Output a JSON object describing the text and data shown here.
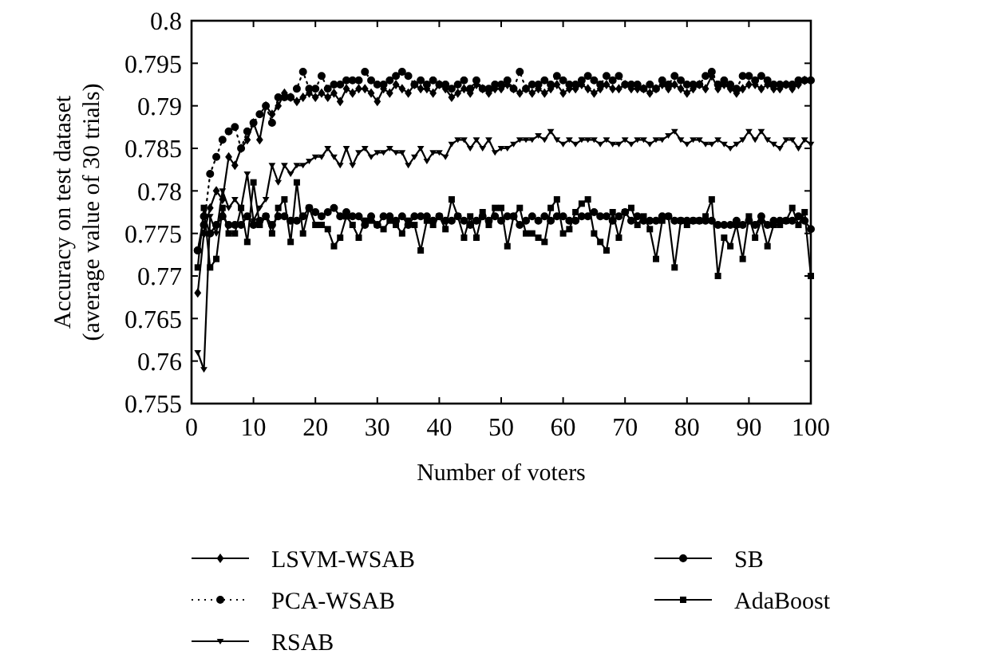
{
  "chart_data": {
    "type": "line",
    "xlabel": "Number of voters",
    "ylabel": "Accuracy on test dataset\n(average value of 30 trials)",
    "xlim": [
      0,
      100
    ],
    "xticks": [
      0,
      10,
      20,
      30,
      40,
      50,
      60,
      70,
      80,
      90,
      100
    ],
    "ylim": [
      0.755,
      0.8
    ],
    "yticks": [
      0.755,
      0.76,
      0.765,
      0.77,
      0.775,
      0.78,
      0.785,
      0.79,
      0.795,
      0.8
    ],
    "grid": false,
    "legend": "bottom",
    "x": [
      1,
      2,
      3,
      4,
      5,
      6,
      7,
      8,
      9,
      10,
      11,
      12,
      13,
      14,
      15,
      16,
      17,
      18,
      19,
      20,
      21,
      22,
      23,
      24,
      25,
      26,
      27,
      28,
      29,
      30,
      31,
      32,
      33,
      34,
      35,
      36,
      37,
      38,
      39,
      40,
      41,
      42,
      43,
      44,
      45,
      46,
      47,
      48,
      49,
      50,
      51,
      52,
      53,
      54,
      55,
      56,
      57,
      58,
      59,
      60,
      61,
      62,
      63,
      64,
      65,
      66,
      67,
      68,
      69,
      70,
      71,
      72,
      73,
      74,
      75,
      76,
      77,
      78,
      79,
      80,
      81,
      82,
      83,
      84,
      85,
      86,
      87,
      88,
      89,
      90,
      91,
      92,
      93,
      94,
      95,
      96,
      97,
      98,
      99,
      100
    ],
    "series": [
      {
        "name": "LSVM-WSAB",
        "color": "#000000",
        "marker": "diamond",
        "line_style": "solid",
        "values": [
          0.768,
          0.775,
          0.778,
          0.78,
          0.779,
          0.784,
          0.783,
          0.785,
          0.786,
          0.788,
          0.786,
          0.79,
          0.789,
          0.79,
          0.7915,
          0.791,
          0.7905,
          0.791,
          0.7915,
          0.791,
          0.7915,
          0.791,
          0.7915,
          0.7905,
          0.792,
          0.7915,
          0.792,
          0.792,
          0.7915,
          0.7905,
          0.792,
          0.7915,
          0.7925,
          0.792,
          0.7915,
          0.7925,
          0.792,
          0.792,
          0.7915,
          0.7925,
          0.792,
          0.791,
          0.7915,
          0.792,
          0.7915,
          0.7925,
          0.792,
          0.7915,
          0.792,
          0.792,
          0.7925,
          0.792,
          0.7915,
          0.792,
          0.7915,
          0.792,
          0.7915,
          0.792,
          0.7925,
          0.7915,
          0.792,
          0.792,
          0.7925,
          0.792,
          0.7915,
          0.792,
          0.7925,
          0.792,
          0.792,
          0.7925,
          0.792,
          0.792,
          0.792,
          0.7915,
          0.792,
          0.7925,
          0.792,
          0.7925,
          0.792,
          0.7915,
          0.792,
          0.7925,
          0.792,
          0.7935,
          0.792,
          0.7925,
          0.792,
          0.7915,
          0.792,
          0.7925,
          0.7925,
          0.792,
          0.7925,
          0.792,
          0.792,
          0.7925,
          0.792,
          0.7925,
          0.793,
          0.793
        ]
      },
      {
        "name": "PCA-WSAB",
        "color": "#000000",
        "marker": "circle",
        "line_style": "dotted",
        "values": [
          0.773,
          0.776,
          0.782,
          0.784,
          0.786,
          0.787,
          0.7875,
          0.785,
          0.787,
          0.788,
          0.789,
          0.79,
          0.788,
          0.791,
          0.791,
          0.791,
          0.792,
          0.794,
          0.792,
          0.792,
          0.7935,
          0.792,
          0.7925,
          0.7925,
          0.793,
          0.793,
          0.793,
          0.794,
          0.793,
          0.7925,
          0.7925,
          0.793,
          0.7935,
          0.794,
          0.7935,
          0.7925,
          0.793,
          0.7925,
          0.793,
          0.7925,
          0.7925,
          0.792,
          0.7925,
          0.793,
          0.792,
          0.793,
          0.792,
          0.792,
          0.7925,
          0.7925,
          0.793,
          0.792,
          0.794,
          0.792,
          0.7925,
          0.7925,
          0.793,
          0.7925,
          0.7935,
          0.793,
          0.7925,
          0.7925,
          0.793,
          0.7935,
          0.793,
          0.7925,
          0.7935,
          0.793,
          0.7935,
          0.7925,
          0.7925,
          0.7925,
          0.792,
          0.7925,
          0.792,
          0.793,
          0.7925,
          0.7935,
          0.793,
          0.7925,
          0.7925,
          0.7925,
          0.7935,
          0.794,
          0.7925,
          0.793,
          0.7925,
          0.792,
          0.7935,
          0.7935,
          0.793,
          0.7935,
          0.793,
          0.7925,
          0.7925,
          0.7925,
          0.7925,
          0.793,
          0.793,
          0.793
        ]
      },
      {
        "name": "RSAB",
        "color": "#000000",
        "marker": "triangle",
        "line_style": "solid",
        "values": [
          0.761,
          0.759,
          0.777,
          0.775,
          0.78,
          0.778,
          0.779,
          0.778,
          0.782,
          0.7765,
          0.778,
          0.779,
          0.783,
          0.781,
          0.783,
          0.782,
          0.783,
          0.783,
          0.7835,
          0.784,
          0.784,
          0.785,
          0.784,
          0.783,
          0.785,
          0.783,
          0.7845,
          0.785,
          0.784,
          0.7845,
          0.7845,
          0.785,
          0.7845,
          0.7845,
          0.783,
          0.784,
          0.785,
          0.7835,
          0.7845,
          0.7845,
          0.784,
          0.7855,
          0.786,
          0.786,
          0.785,
          0.786,
          0.785,
          0.786,
          0.7845,
          0.785,
          0.785,
          0.7855,
          0.786,
          0.786,
          0.786,
          0.7865,
          0.786,
          0.787,
          0.786,
          0.7855,
          0.786,
          0.7855,
          0.786,
          0.786,
          0.786,
          0.7855,
          0.786,
          0.7855,
          0.7855,
          0.786,
          0.7855,
          0.786,
          0.786,
          0.7855,
          0.786,
          0.786,
          0.7865,
          0.787,
          0.786,
          0.7855,
          0.786,
          0.786,
          0.7855,
          0.7855,
          0.786,
          0.7855,
          0.785,
          0.7855,
          0.786,
          0.787,
          0.786,
          0.787,
          0.786,
          0.7855,
          0.785,
          0.786,
          0.786,
          0.785,
          0.786,
          0.7855
        ]
      },
      {
        "name": "SB",
        "color": "#000000",
        "marker": "circle",
        "line_style": "solid",
        "values": [
          0.773,
          0.777,
          0.775,
          0.776,
          0.777,
          0.776,
          0.776,
          0.776,
          0.777,
          0.776,
          0.7765,
          0.777,
          0.776,
          0.777,
          0.777,
          0.7765,
          0.7765,
          0.777,
          0.778,
          0.7775,
          0.777,
          0.7775,
          0.778,
          0.777,
          0.7775,
          0.777,
          0.777,
          0.776,
          0.777,
          0.776,
          0.777,
          0.777,
          0.7765,
          0.777,
          0.776,
          0.777,
          0.777,
          0.777,
          0.7765,
          0.777,
          0.7765,
          0.7765,
          0.777,
          0.7765,
          0.776,
          0.7765,
          0.777,
          0.7765,
          0.777,
          0.7765,
          0.777,
          0.777,
          0.776,
          0.7765,
          0.777,
          0.7765,
          0.777,
          0.7765,
          0.777,
          0.777,
          0.7765,
          0.7765,
          0.777,
          0.777,
          0.7775,
          0.777,
          0.777,
          0.7765,
          0.777,
          0.7775,
          0.7765,
          0.777,
          0.7765,
          0.7765,
          0.7765,
          0.777,
          0.777,
          0.7765,
          0.7765,
          0.7765,
          0.7765,
          0.7765,
          0.7765,
          0.7765,
          0.776,
          0.776,
          0.776,
          0.7765,
          0.776,
          0.7765,
          0.776,
          0.777,
          0.776,
          0.7765,
          0.7765,
          0.7765,
          0.7765,
          0.777,
          0.7765,
          0.7755
        ]
      },
      {
        "name": "AdaBoost",
        "color": "#000000",
        "marker": "square",
        "line_style": "solid",
        "values": [
          0.771,
          0.778,
          0.771,
          0.772,
          0.778,
          0.775,
          0.775,
          0.778,
          0.774,
          0.781,
          0.776,
          0.777,
          0.775,
          0.778,
          0.779,
          0.774,
          0.781,
          0.775,
          0.778,
          0.776,
          0.776,
          0.7755,
          0.7735,
          0.7745,
          0.777,
          0.776,
          0.7745,
          0.7765,
          0.7765,
          0.776,
          0.7755,
          0.7765,
          0.776,
          0.775,
          0.7765,
          0.776,
          0.773,
          0.7765,
          0.776,
          0.777,
          0.7755,
          0.779,
          0.777,
          0.7745,
          0.777,
          0.7745,
          0.7775,
          0.776,
          0.778,
          0.778,
          0.7735,
          0.777,
          0.778,
          0.775,
          0.775,
          0.7745,
          0.774,
          0.778,
          0.779,
          0.775,
          0.7755,
          0.7775,
          0.7785,
          0.779,
          0.775,
          0.774,
          0.773,
          0.7775,
          0.7745,
          0.7775,
          0.778,
          0.776,
          0.777,
          0.7755,
          0.772,
          0.7765,
          0.777,
          0.771,
          0.7765,
          0.776,
          0.7765,
          0.7765,
          0.777,
          0.779,
          0.77,
          0.7745,
          0.7735,
          0.776,
          0.772,
          0.777,
          0.7745,
          0.7765,
          0.7735,
          0.776,
          0.776,
          0.7765,
          0.778,
          0.776,
          0.7775,
          0.77
        ]
      }
    ]
  }
}
